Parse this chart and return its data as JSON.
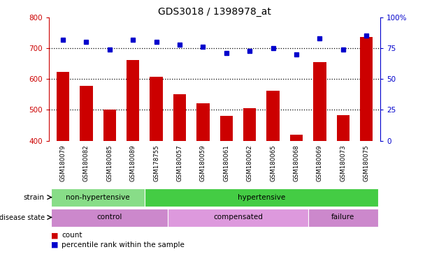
{
  "title": "GDS3018 / 1398978_at",
  "samples": [
    "GSM180079",
    "GSM180082",
    "GSM180085",
    "GSM180089",
    "GSM178755",
    "GSM180057",
    "GSM180059",
    "GSM180061",
    "GSM180062",
    "GSM180065",
    "GSM180068",
    "GSM180069",
    "GSM180073",
    "GSM180075"
  ],
  "counts": [
    623,
    578,
    502,
    661,
    607,
    551,
    522,
    480,
    506,
    562,
    420,
    655,
    482,
    737
  ],
  "percentile_ranks": [
    82,
    80,
    74,
    82,
    80,
    78,
    76,
    71,
    73,
    75,
    70,
    83,
    74,
    85
  ],
  "bar_color": "#cc0000",
  "dot_color": "#0000cc",
  "ylim_left": [
    400,
    800
  ],
  "ylim_right": [
    0,
    100
  ],
  "yticks_left": [
    400,
    500,
    600,
    700,
    800
  ],
  "yticks_right": [
    0,
    25,
    50,
    75,
    100
  ],
  "yright_labels": [
    "0",
    "25",
    "50",
    "75",
    "100%"
  ],
  "hlines": [
    500,
    600,
    700
  ],
  "strain_groups": [
    {
      "label": "non-hypertensive",
      "start": 0,
      "end": 4,
      "color": "#88dd88"
    },
    {
      "label": "hypertensive",
      "start": 4,
      "end": 14,
      "color": "#44cc44"
    }
  ],
  "disease_groups": [
    {
      "label": "control",
      "start": 0,
      "end": 5,
      "color": "#cc88cc"
    },
    {
      "label": "compensated",
      "start": 5,
      "end": 11,
      "color": "#dd99dd"
    },
    {
      "label": "failure",
      "start": 11,
      "end": 14,
      "color": "#cc88cc"
    }
  ],
  "axis_color_left": "#cc0000",
  "axis_color_right": "#0000cc",
  "bg_color": "#ffffff",
  "tick_area_bg": "#cccccc",
  "strain_left_label": "strain",
  "disease_left_label": "disease state",
  "legend_count": "count",
  "legend_pct": "percentile rank within the sample"
}
